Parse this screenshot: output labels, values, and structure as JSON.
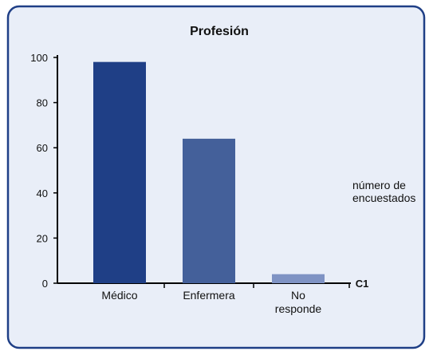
{
  "chart_data": {
    "type": "bar",
    "title": "Profesión",
    "categories": [
      "Médico",
      "Enfermera",
      "No responde"
    ],
    "values": [
      98,
      64,
      4
    ],
    "colors": [
      "#1f3f86",
      "#44609a",
      "#7f93c4"
    ],
    "ylim": [
      0,
      100
    ],
    "yticks": [
      0,
      20,
      40,
      60,
      80,
      100
    ],
    "xlabel": "C1",
    "annotation": [
      "número de",
      "encuestados"
    ]
  }
}
